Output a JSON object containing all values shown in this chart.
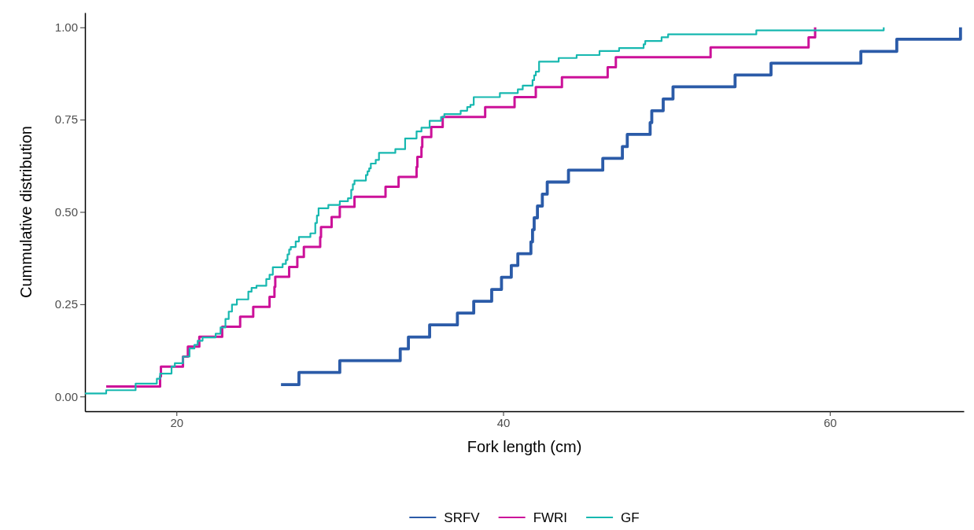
{
  "chart_data": {
    "type": "step",
    "xlabel": "Fork length (cm)",
    "ylabel": "Cummulative distribution",
    "xlim": [
      14.4,
      68.2
    ],
    "ylim": [
      -0.04,
      1.04
    ],
    "xticks": [
      20,
      40,
      60
    ],
    "yticks": [
      {
        "value": 0,
        "label": "0.00"
      },
      {
        "value": 0.25,
        "label": "0.25"
      },
      {
        "value": 0.5,
        "label": "0.50"
      },
      {
        "value": 0.75,
        "label": "0.75"
      },
      {
        "value": 1,
        "label": "1.00"
      }
    ],
    "grid": false,
    "legend": "bottom",
    "line_style": "solid",
    "marker": "none",
    "series": [
      {
        "name": "SRFV",
        "color": "#2b5ba8",
        "x": [
          26.4,
          27.5,
          30.0,
          33.7,
          34.2,
          35.5,
          37.2,
          38.2,
          39.3,
          39.9,
          40.5,
          40.9,
          41.7,
          41.8,
          41.9,
          42.1,
          42.4,
          42.7,
          44.0,
          46.1,
          47.3,
          47.6,
          49.0,
          49.1,
          49.8,
          50.4,
          54.2,
          56.4,
          61.9,
          64.1,
          68.0
        ],
        "values": [
          0.032,
          0.065,
          0.097,
          0.129,
          0.161,
          0.194,
          0.226,
          0.258,
          0.29,
          0.323,
          0.355,
          0.387,
          0.419,
          0.452,
          0.484,
          0.516,
          0.548,
          0.581,
          0.613,
          0.645,
          0.677,
          0.71,
          0.742,
          0.774,
          0.806,
          0.839,
          0.871,
          0.903,
          0.935,
          0.968,
          1.0
        ]
      },
      {
        "name": "FWRI",
        "color": "#cc1199",
        "x": [
          15.7,
          19.0,
          19.05,
          20.4,
          20.7,
          21.4,
          22.8,
          23.9,
          24.7,
          25.7,
          26.0,
          26.05,
          26.9,
          27.4,
          27.8,
          28.8,
          28.85,
          29.5,
          30.0,
          30.9,
          32.8,
          33.6,
          34.7,
          34.75,
          35.0,
          35.05,
          35.6,
          36.3,
          38.9,
          40.7,
          42.0,
          43.6,
          46.4,
          46.9,
          52.7,
          58.7,
          59.1
        ],
        "values": [
          0.027,
          0.054,
          0.081,
          0.108,
          0.135,
          0.162,
          0.189,
          0.216,
          0.243,
          0.27,
          0.297,
          0.324,
          0.351,
          0.378,
          0.405,
          0.432,
          0.459,
          0.486,
          0.514,
          0.541,
          0.568,
          0.595,
          0.622,
          0.649,
          0.676,
          0.703,
          0.73,
          0.757,
          0.784,
          0.811,
          0.838,
          0.865,
          0.892,
          0.919,
          0.946,
          0.973,
          1.0
        ]
      },
      {
        "name": "GF",
        "color": "#17b8b0",
        "x": [
          14.4,
          15.7,
          17.5,
          18.8,
          19.0,
          19.7,
          19.9,
          20.4,
          20.8,
          21.1,
          21.3,
          21.6,
          22.4,
          22.7,
          23.0,
          23.2,
          23.4,
          23.7,
          24.4,
          24.6,
          24.9,
          25.5,
          25.7,
          25.9,
          26.5,
          26.7,
          26.8,
          26.9,
          27.0,
          27.3,
          27.5,
          28.2,
          28.5,
          28.6,
          28.7,
          29.3,
          30.0,
          30.5,
          30.7,
          30.8,
          30.9,
          31.6,
          31.7,
          31.8,
          31.9,
          32.2,
          32.4,
          33.4,
          34.0,
          34.7,
          35.0,
          35.5,
          36.2,
          36.4,
          37.4,
          37.8,
          38.0,
          38.2,
          39.8,
          40.9,
          41.2,
          41.8,
          41.9,
          42.0,
          42.2,
          43.4,
          44.5,
          45.9,
          47.1,
          48.6,
          48.7,
          49.7,
          50.1,
          55.5,
          63.3
        ],
        "values": [
          0.008,
          0.017,
          0.035,
          0.048,
          0.062,
          0.081,
          0.09,
          0.108,
          0.13,
          0.14,
          0.151,
          0.16,
          0.17,
          0.187,
          0.21,
          0.23,
          0.249,
          0.263,
          0.284,
          0.294,
          0.3,
          0.318,
          0.33,
          0.35,
          0.359,
          0.37,
          0.385,
          0.398,
          0.405,
          0.42,
          0.432,
          0.442,
          0.47,
          0.49,
          0.51,
          0.519,
          0.529,
          0.537,
          0.56,
          0.575,
          0.585,
          0.6,
          0.61,
          0.618,
          0.631,
          0.641,
          0.66,
          0.67,
          0.699,
          0.718,
          0.728,
          0.747,
          0.757,
          0.765,
          0.774,
          0.784,
          0.79,
          0.811,
          0.822,
          0.832,
          0.842,
          0.857,
          0.87,
          0.88,
          0.907,
          0.917,
          0.925,
          0.936,
          0.944,
          0.954,
          0.963,
          0.973,
          0.981,
          0.992,
          1.0
        ]
      }
    ]
  }
}
